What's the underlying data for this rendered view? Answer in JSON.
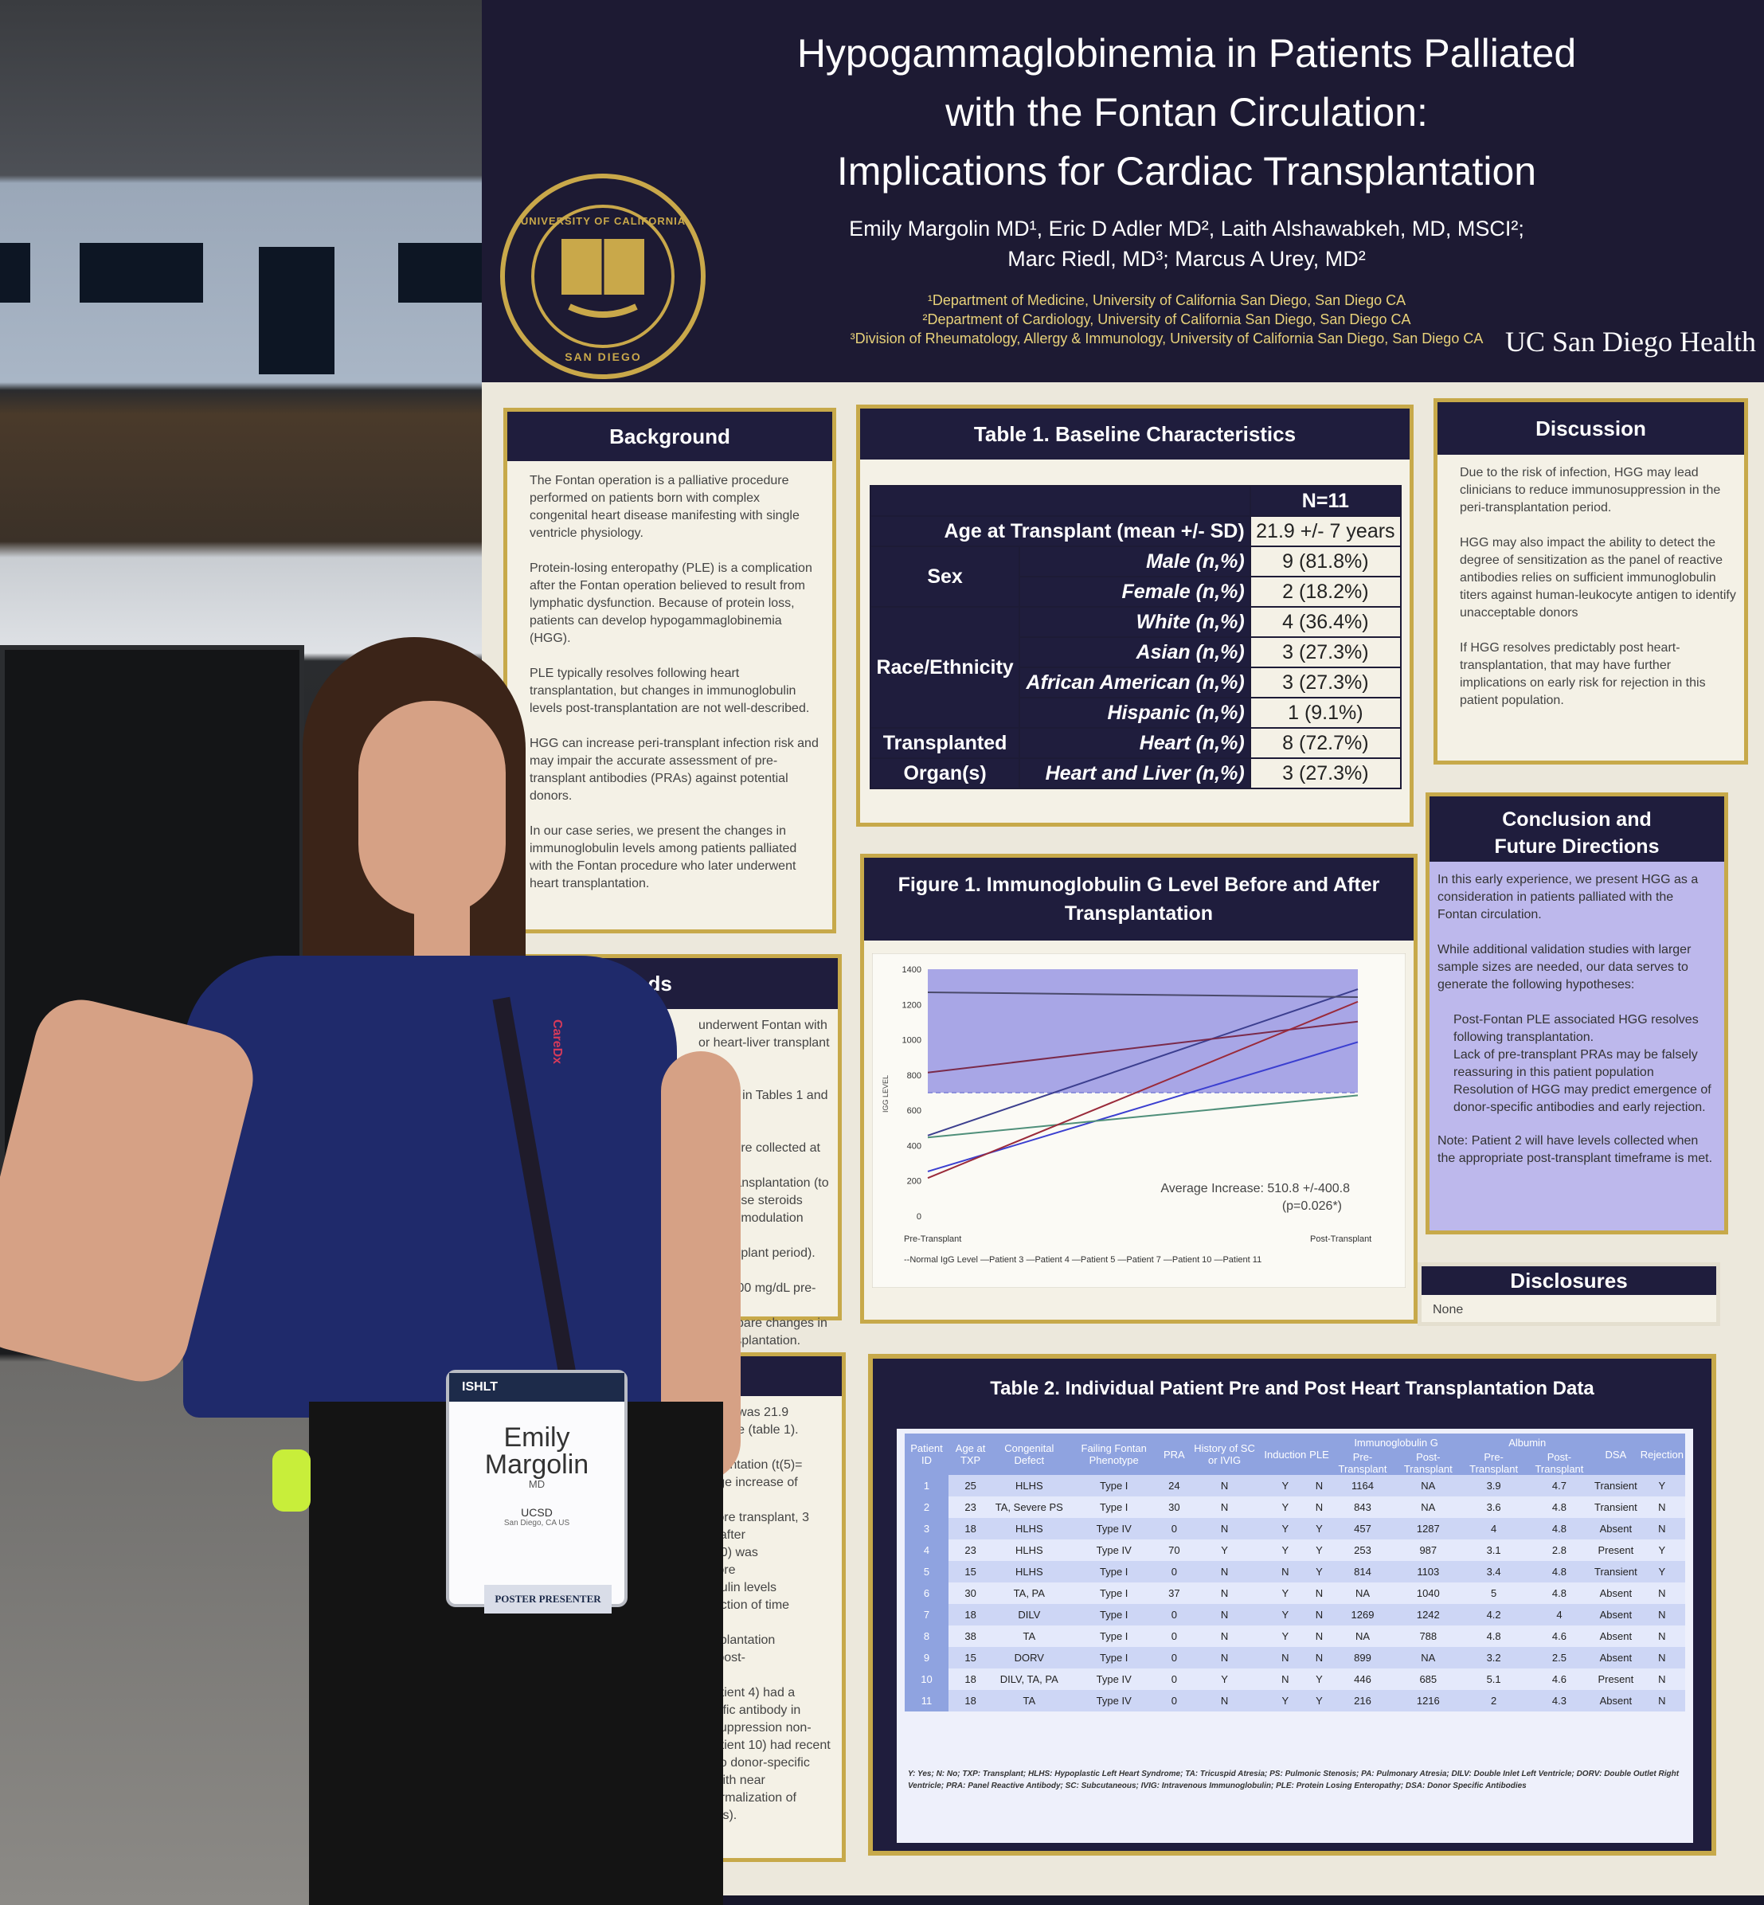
{
  "poster": {
    "title_lines": [
      "Hypogammaglobinemia in Patients Palliated",
      "with the Fontan Circulation:",
      "Implications for Cardiac Transplantation"
    ],
    "authors_line1": "Emily Margolin MD¹, Eric D Adler MD², Laith Alshawabkeh, MD, MSCI²;",
    "authors_line2": "Marc Riedl, MD³; Marcus A Urey, MD²",
    "affiliations": [
      "¹Department of Medicine, University of California San Diego, San Diego CA",
      "²Department of Cardiology, University of California San Diego, San Diego CA",
      "³Division of Rheumatology, Allergy & Immunology, University of California San Diego, San Diego CA"
    ],
    "seal_text_top": "UNIVERSITY OF CALIFORNIA",
    "seal_text_bottom": "SAN DIEGO",
    "brand": "UC San Diego Health"
  },
  "background": {
    "heading": "Background",
    "paragraphs": [
      "The Fontan operation is a palliative procedure performed on patients born with complex congenital heart disease manifesting with single ventricle physiology.",
      "Protein-losing enteropathy (PLE) is a complication after the Fontan operation believed to result from lymphatic dysfunction. Because of protein loss, patients can develop hypogammaglobinemia (HGG).",
      "PLE typically resolves following heart transplantation, but changes in immunoglobulin levels post-transplantation are not well-described.",
      "HGG can increase peri-transplant infection risk and may impair the accurate assessment of pre-transplant antibodies (PRAs) against potential donors.",
      "In our case series, we present the changes in immunoglobulin levels among patients palliated with the Fontan procedure who later underwent heart transplantation."
    ]
  },
  "methods": {
    "heading": "Methods",
    "fragments": [
      "underwent Fontan with",
      "or heart-liver transplant",
      "1).",
      "e listed in Tables 1 and 2.",
      "vels were collected at a",
      "post-transplantation (to",
      "high-dose steroids",
      "mmunomodulation used",
      "st-transplant period).",
      "gG < 700 mg/dL pre-",
      "to compare changes in",
      "er transplantation."
    ]
  },
  "results": {
    "fragments": [
      "ation was 21.9",
      "e male (table 1).",
      "splantation (t(5)=",
      "rage increase of",
      "efore transplant, 3",
      "G after",
      "t 10) was",
      "efore",
      "obulin levels",
      "unction of time",
      "nsplantation",
      "d post-",
      "patient 4) had a",
      "ecific antibody in",
      "osuppression non-",
      "patient 10) had recent",
      "ovo donor-specific",
      "; with near normalization of",
      "vels)."
    ]
  },
  "table1": {
    "heading": "Table 1. Baseline Characteristics",
    "n_label": "N=11",
    "age_label": "Age at Transplant (mean +/- SD)",
    "age_value": "21.9 +/- 7 years",
    "sex_label": "Sex",
    "male_label": "Male (n,%)",
    "male_value": "9 (81.8%)",
    "female_label": "Female (n,%)",
    "female_value": "2 (18.2%)",
    "race_label": "Race/Ethnicity",
    "white_label": "White (n,%)",
    "white_value": "4 (36.4%)",
    "asian_label": "Asian (n,%)",
    "asian_value": "3 (27.3%)",
    "aa_label": "African American (n,%)",
    "aa_value": "3 (27.3%)",
    "hisp_label": "Hispanic (n,%)",
    "hisp_value": "1 (9.1%)",
    "organ_label_1": "Transplanted",
    "organ_label_2": "Organ(s)",
    "heart_label": "Heart (n,%)",
    "heart_value": "8 (72.7%)",
    "hl_label": "Heart and Liver (n,%)",
    "hl_value": "3 (27.3%)"
  },
  "figure1": {
    "heading_line1": "Figure 1. Immunoglobulin G Level Before and After",
    "heading_line2": "Transplantation",
    "ylabel": "IGG LEVEL",
    "annotation_line1": "Average Increase: 510.8 +/-400.8",
    "annotation_line2": "(p=0.026*)",
    "legend": "--Normal IgG Level —Patient 3 —Patient 4 —Patient 5 —Patient 7 —Patient 10 —Patient 11"
  },
  "chart_data": {
    "type": "line",
    "x": [
      "Pre-Transplant",
      "Post-Transplant"
    ],
    "ylim": [
      0,
      1400
    ],
    "yticks": [
      0,
      200,
      400,
      600,
      800,
      1000,
      1200,
      1400
    ],
    "series": [
      {
        "name": "Normal IgG Level",
        "values": [
          700,
          700
        ],
        "color": "#7b7fd6"
      },
      {
        "name": "Patient 3",
        "values": [
          457,
          1287
        ],
        "color": "#3c3f8f"
      },
      {
        "name": "Patient 4",
        "values": [
          253,
          987
        ],
        "color": "#3b3fd0"
      },
      {
        "name": "Patient 5",
        "values": [
          814,
          1103
        ],
        "color": "#7a2a4a"
      },
      {
        "name": "Patient 7",
        "values": [
          1269,
          1242
        ],
        "color": "#4a4a6a"
      },
      {
        "name": "Patient 10",
        "values": [
          446,
          685
        ],
        "color": "#4f8f7a"
      },
      {
        "name": "Patient 11",
        "values": [
          216,
          1216
        ],
        "color": "#9a2a3a"
      }
    ]
  },
  "discussion": {
    "heading": "Discussion",
    "paragraphs": [
      "Due to the risk of infection, HGG may lead clinicians to reduce immunosuppression in the peri-transplantation period.",
      "HGG may also impact the ability to detect the degree of sensitization as the panel of reactive antibodies relies on sufficient immunoglobulin titers against human-leukocyte antigen to identify unacceptable donors",
      "If HGG resolves predictably post heart-transplantation, that may have further implications on early risk for rejection in this patient population."
    ]
  },
  "conclusion": {
    "heading_line1": "Conclusion and",
    "heading_line2": "Future Directions",
    "intro": "In this early experience, we present HGG as a consideration in patients palliated with the Fontan circulation.",
    "lead": "While additional validation studies with larger sample sizes are needed, our data serves to generate the following hypotheses:",
    "bullets": [
      "Post-Fontan PLE associated HGG resolves following transplantation.",
      "Lack of pre-transplant PRAs may be falsely reassuring in this patient population",
      "Resolution of HGG may predict emergence of donor-specific antibodies and early rejection."
    ],
    "note": "Note: Patient 2 will have levels collected when the appropriate post-transplant timeframe is met."
  },
  "disclosures": {
    "heading": "Disclosures",
    "text": "None"
  },
  "table2": {
    "heading": "Table 2. Individual Patient Pre and Post Heart Transplantation Data",
    "group_ig": "Immunoglobulin G",
    "group_alb": "Albumin",
    "headers": [
      "Patient ID",
      "Age at TXP",
      "Congenital Defect",
      "Failing Fontan Phenotype",
      "PRA",
      "History of SC or IVIG",
      "Induction",
      "PLE",
      "Pre-Transplant",
      "Post-Transplant",
      "Pre-Transplant",
      "Post-Transplant",
      "DSA",
      "Rejection"
    ],
    "rows": [
      [
        "1",
        "25",
        "HLHS",
        "Type I",
        "24",
        "N",
        "Y",
        "N",
        "1164",
        "NA",
        "3.9",
        "4.7",
        "Transient",
        "Y"
      ],
      [
        "2",
        "23",
        "TA, Severe PS",
        "Type I",
        "30",
        "N",
        "Y",
        "N",
        "843",
        "NA",
        "3.6",
        "4.8",
        "Transient",
        "N"
      ],
      [
        "3",
        "18",
        "HLHS",
        "Type IV",
        "0",
        "N",
        "Y",
        "Y",
        "457",
        "1287",
        "4",
        "4.8",
        "Absent",
        "N"
      ],
      [
        "4",
        "23",
        "HLHS",
        "Type IV",
        "70",
        "Y",
        "Y",
        "Y",
        "253",
        "987",
        "3.1",
        "2.8",
        "Present",
        "Y"
      ],
      [
        "5",
        "15",
        "HLHS",
        "Type I",
        "0",
        "N",
        "N",
        "Y",
        "814",
        "1103",
        "3.4",
        "4.8",
        "Transient",
        "Y"
      ],
      [
        "6",
        "30",
        "TA, PA",
        "Type I",
        "37",
        "N",
        "Y",
        "N",
        "NA",
        "1040",
        "5",
        "4.8",
        "Absent",
        "N"
      ],
      [
        "7",
        "18",
        "DILV",
        "Type I",
        "0",
        "N",
        "Y",
        "N",
        "1269",
        "1242",
        "4.2",
        "4",
        "Absent",
        "N"
      ],
      [
        "8",
        "38",
        "TA",
        "Type I",
        "0",
        "N",
        "Y",
        "N",
        "NA",
        "788",
        "4.8",
        "4.6",
        "Absent",
        "N"
      ],
      [
        "9",
        "15",
        "DORV",
        "Type I",
        "0",
        "N",
        "N",
        "N",
        "899",
        "NA",
        "3.2",
        "2.5",
        "Absent",
        "N"
      ],
      [
        "10",
        "18",
        "DILV, TA, PA",
        "Type IV",
        "0",
        "Y",
        "N",
        "Y",
        "446",
        "685",
        "5.1",
        "4.6",
        "Present",
        "N"
      ],
      [
        "11",
        "18",
        "TA",
        "Type IV",
        "0",
        "N",
        "Y",
        "Y",
        "216",
        "1216",
        "2",
        "4.3",
        "Absent",
        "N"
      ]
    ],
    "footnote": "Y: Yes; N: No; TXP: Transplant; HLHS: Hypoplastic Left Heart Syndrome; TA: Tricuspid Atresia; PS: Pulmonic Stenosis; PA: Pulmonary Atresia; DILV: Double Inlet Left Ventricle; DORV: Double Outlet Right Ventricle; PRA: Panel Reactive Antibody; SC: Subcutaneous; IVIG: Intravenous Immunoglobulin; PLE: Protein Losing Enteropathy; DSA: Donor Specific Antibodies"
  },
  "badge": {
    "event": "ISHLT",
    "name_line1": "Emily",
    "name_line2": "Margolin",
    "credential": "MD",
    "org": "UCSD",
    "location": "San Diego, CA US",
    "ribbon": "POSTER PRESENTER",
    "lanyard": "CareDx"
  }
}
